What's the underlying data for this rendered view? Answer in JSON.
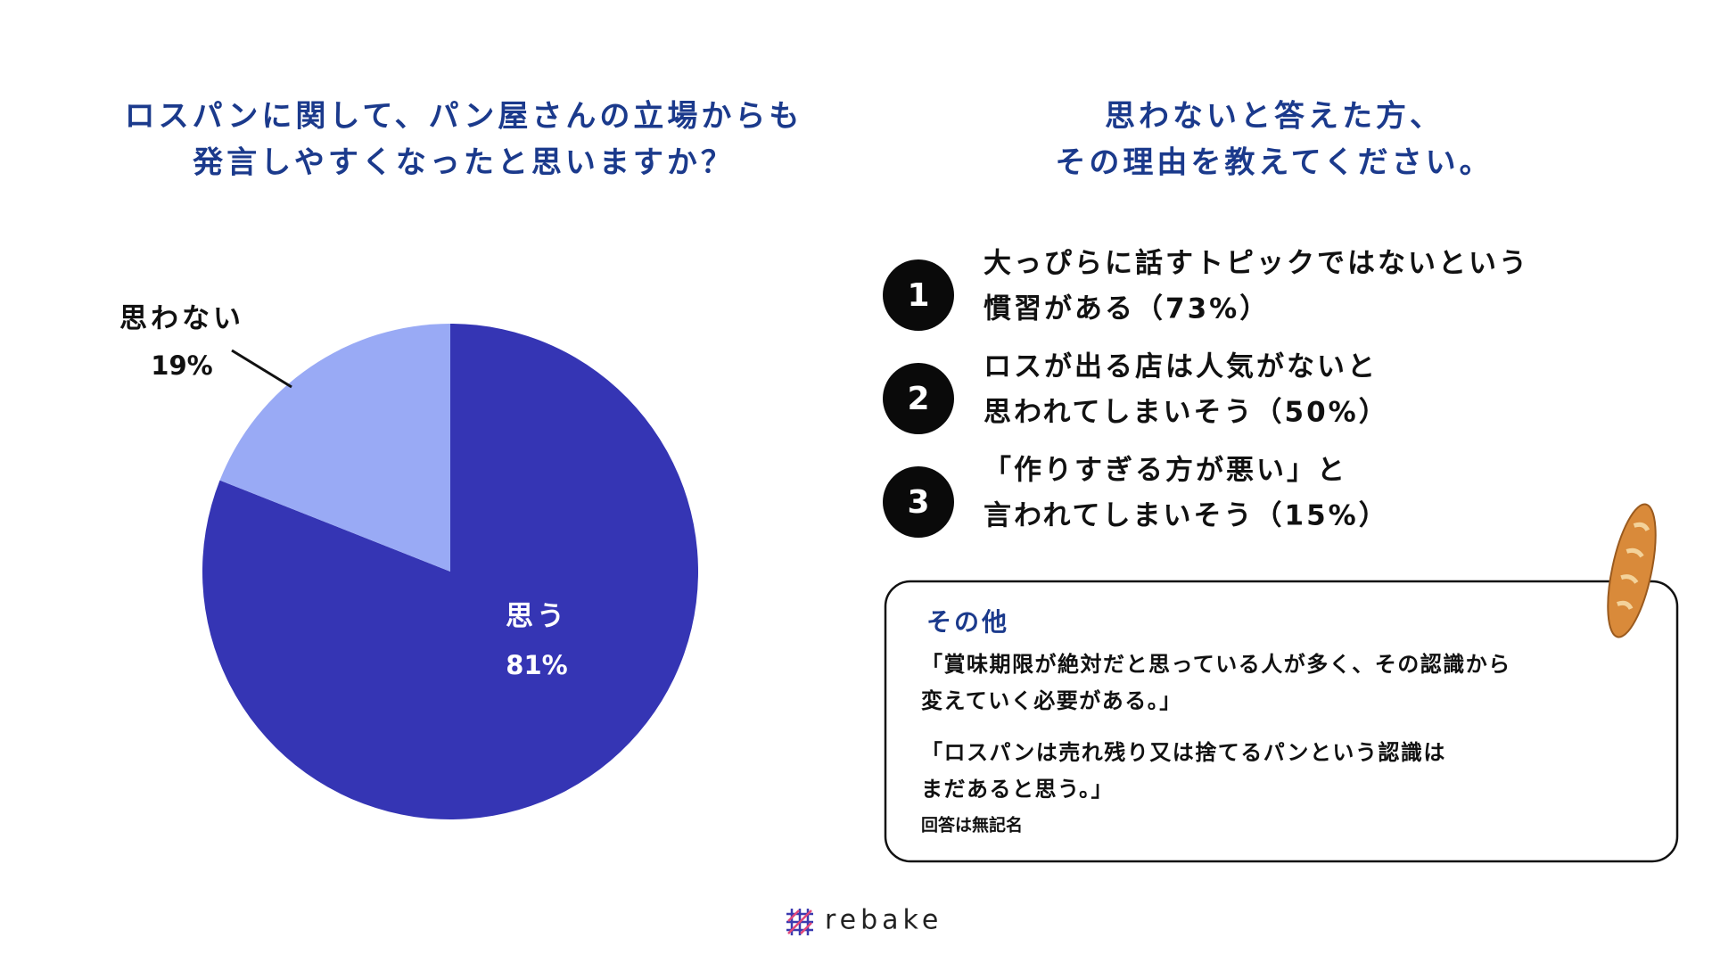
{
  "chart_data": {
    "type": "pie",
    "title": [
      "ロスパンに関して、パン屋さんの立場からも",
      "発言しやすくなったと思いますか？"
    ],
    "categories": [
      "思う",
      "思わない"
    ],
    "values": [
      81,
      19
    ],
    "value_labels": [
      "81%",
      "19%"
    ],
    "colors": [
      "#3535b4",
      "#99aaf5"
    ]
  },
  "reasons": {
    "title": [
      "思わないと答えた方、",
      "その理由を教えてください。"
    ],
    "items": [
      {
        "rank": 1,
        "lines": [
          "大っぴらに話すトピックではないという",
          "慣習がある（73%）"
        ]
      },
      {
        "rank": 2,
        "lines": [
          "ロスが出る店は人気がないと",
          "思われてしまいそう（50%）"
        ]
      },
      {
        "rank": 3,
        "lines": [
          "「作りすぎる方が悪い」と",
          "言われてしまいそう（15%）"
        ]
      }
    ]
  },
  "other": {
    "heading": "その他",
    "quotes": [
      [
        "「賞味期限が絶対だと思っている人が多く、その認識から",
        "変えていく必要がある。」"
      ],
      [
        "「ロスパンは売れ残り又は捨てるパンという認識は",
        "まだあると思う。」"
      ]
    ],
    "note": "回答は無記名"
  },
  "logo": "rebake"
}
